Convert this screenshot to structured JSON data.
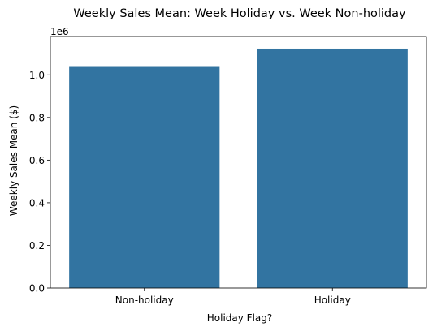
{
  "chart_data": {
    "type": "bar",
    "title": "Weekly Sales Mean: Week Holiday vs. Week Non-holiday",
    "xlabel": "Holiday Flag?",
    "ylabel": "Weekly Sales Mean ($)",
    "categories": [
      "Non-holiday",
      "Holiday"
    ],
    "values": [
      1041000,
      1123000
    ],
    "ylim": [
      0,
      1180000
    ],
    "yticks": [
      0,
      0.2,
      0.4,
      0.6,
      0.8,
      1.0
    ],
    "ytick_labels": [
      "0.0",
      "0.2",
      "0.4",
      "0.6",
      "0.8",
      "1.0"
    ],
    "y_offset_label": "1e6",
    "bar_color": "#3274a1",
    "grid": false,
    "legend": "none"
  }
}
